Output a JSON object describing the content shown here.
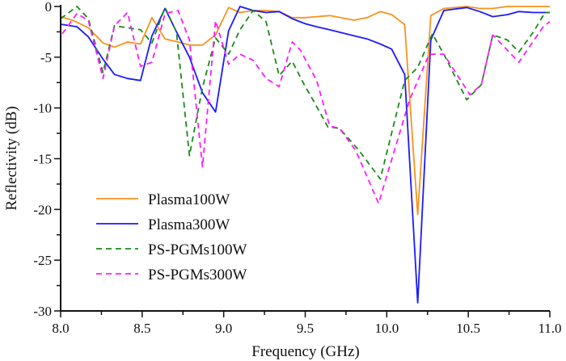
{
  "chart_data": {
    "type": "line",
    "title": "",
    "xlabel": "Frequency (GHz)",
    "ylabel": "Reflectivity (dB)",
    "xlim": [
      8.0,
      11.0
    ],
    "ylim": [
      -30,
      0
    ],
    "xticks": [
      "8.0",
      "8.5",
      "9.0",
      "9.5",
      "10.0",
      "10.5",
      "11.0"
    ],
    "xtick_values": [
      8.0,
      8.5,
      9.0,
      9.5,
      10.0,
      10.5,
      11.0
    ],
    "yticks": [
      "0",
      "-5",
      "-10",
      "-15",
      "-20",
      "-25",
      "-30"
    ],
    "ytick_values": [
      0,
      -5,
      -10,
      -15,
      -20,
      -25,
      -30
    ],
    "grid": false,
    "legend_position": "lower-left",
    "series": [
      {
        "name": "Plasma100W",
        "color": "#f7931e",
        "dash": false,
        "x": [
          8.0,
          8.08,
          8.17,
          8.26,
          8.33,
          8.41,
          8.49,
          8.56,
          8.64,
          8.72,
          8.79,
          8.87,
          8.95,
          9.03,
          9.1,
          9.18,
          9.26,
          9.34,
          9.42,
          9.5,
          9.57,
          9.65,
          9.8,
          9.88,
          9.96,
          10.03,
          10.11,
          10.19,
          10.27,
          10.35,
          10.49,
          10.57,
          10.65,
          10.74,
          10.81,
          10.9,
          11.0
        ],
        "y": [
          -1.0,
          -1.4,
          -2.1,
          -3.6,
          -4.0,
          -3.5,
          -3.7,
          -1.1,
          -3.2,
          -3.5,
          -3.8,
          -3.8,
          -2.8,
          -0.1,
          -0.6,
          -0.4,
          -0.4,
          -0.5,
          -1.1,
          -1.1,
          -1.0,
          -0.9,
          -1.35,
          -1.1,
          -0.5,
          -0.8,
          -1.8,
          -20.5,
          -0.9,
          -0.2,
          0.0,
          -0.2,
          -0.2,
          0.0,
          0.0,
          0.0,
          0.0
        ]
      },
      {
        "name": "Plasma300W",
        "color": "#1a1aff",
        "dash": false,
        "x": [
          8.0,
          8.1,
          8.17,
          8.26,
          8.33,
          8.41,
          8.49,
          8.56,
          8.64,
          8.71,
          8.79,
          8.87,
          8.95,
          9.03,
          9.1,
          9.18,
          9.26,
          9.34,
          9.42,
          9.5,
          9.57,
          9.65,
          9.8,
          9.88,
          9.96,
          10.03,
          10.11,
          10.19,
          10.27,
          10.35,
          10.49,
          10.57,
          10.65,
          10.74,
          10.81,
          10.9,
          11.0
        ],
        "y": [
          -1.75,
          -2.0,
          -3.0,
          -5.2,
          -6.7,
          -7.1,
          -7.3,
          -2.9,
          -0.2,
          -2.5,
          -5.0,
          -8.5,
          -10.4,
          -2.4,
          0.0,
          -0.4,
          -0.6,
          -0.5,
          -1.2,
          -1.7,
          -2.0,
          -2.3,
          -2.9,
          -3.2,
          -3.7,
          -4.2,
          -6.7,
          -29.2,
          -3.3,
          -0.4,
          -0.1,
          -0.5,
          -1.0,
          -0.8,
          -0.5,
          -0.6,
          -0.6
        ]
      },
      {
        "name": "PS-PGMs100W",
        "color": "#1a8a1a",
        "dash": true,
        "x": [
          8.0,
          8.1,
          8.17,
          8.26,
          8.33,
          8.41,
          8.49,
          8.56,
          8.64,
          8.71,
          8.79,
          8.87,
          8.95,
          9.03,
          9.1,
          9.18,
          9.26,
          9.34,
          9.42,
          9.5,
          9.53,
          9.64,
          9.71,
          9.83,
          9.96,
          10.11,
          10.19,
          10.28,
          10.35,
          10.49,
          10.58,
          10.65,
          10.74,
          10.81,
          10.9,
          10.97,
          11.0
        ],
        "y": [
          -1.2,
          0.0,
          -1.2,
          -6.5,
          -1.9,
          -2.1,
          -2.3,
          -3.6,
          -0.1,
          -2.5,
          -14.7,
          -8.0,
          -3.1,
          -4.7,
          -2.3,
          -0.4,
          -1.5,
          -6.8,
          -5.4,
          -7.9,
          -8.7,
          -11.9,
          -12.0,
          -14.2,
          -17.0,
          -7.3,
          -6.0,
          -2.7,
          -4.7,
          -9.2,
          -7.7,
          -2.8,
          -3.3,
          -4.5,
          -2.5,
          -0.6,
          -0.6
        ]
      },
      {
        "name": "PS-PGMs300W",
        "color": "#ff1aff",
        "dash": true,
        "x": [
          8.01,
          8.1,
          8.17,
          8.26,
          8.33,
          8.41,
          8.49,
          8.56,
          8.64,
          8.72,
          8.79,
          8.87,
          8.95,
          9.03,
          9.1,
          9.18,
          9.26,
          9.34,
          9.42,
          9.47,
          9.57,
          9.65,
          9.71,
          9.81,
          9.95,
          10.14,
          10.26,
          10.35,
          10.51,
          10.58,
          10.65,
          10.81,
          10.96,
          11.0
        ],
        "y": [
          -2.7,
          -0.7,
          -1.4,
          -7.1,
          -1.9,
          -0.6,
          -5.9,
          -5.5,
          -0.7,
          -0.4,
          -3.3,
          -15.8,
          -1.4,
          -5.7,
          -4.7,
          -5.3,
          -7.1,
          -7.9,
          -3.5,
          -4.3,
          -7.3,
          -11.8,
          -12.0,
          -14.2,
          -19.4,
          -9.2,
          -4.7,
          -4.7,
          -8.7,
          -7.7,
          -2.8,
          -5.5,
          -2.0,
          -1.5
        ]
      }
    ]
  }
}
